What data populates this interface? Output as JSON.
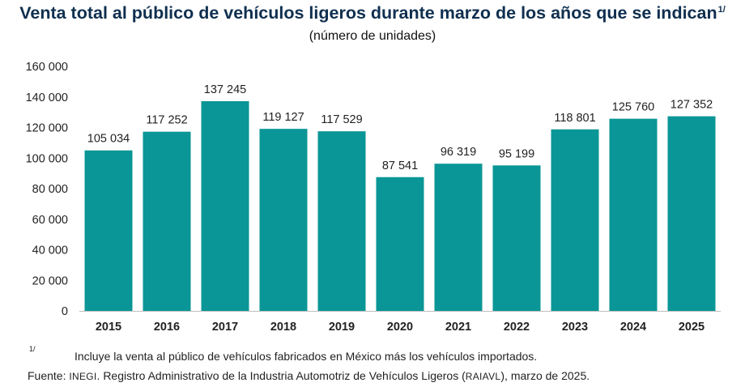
{
  "title": "Venta total al público de vehículos ligeros durante marzo de los años que se indican",
  "title_note": "1/",
  "subtitle": "(número de unidades)",
  "footnote": {
    "mark": "1/",
    "text": "Incluye la venta al público de vehículos fabricados en México más los vehículos importados."
  },
  "source": {
    "prefix": "Fuente: ",
    "org": "INEGI",
    "middle": ". Registro Administrativo de la Industria Automotriz de Vehículos Ligeros (",
    "acronym": "RAIAVL",
    "suffix": "), marzo de 2025."
  },
  "chart_data": {
    "type": "bar",
    "title": "Venta total al público de vehículos ligeros durante marzo de los años que se indican",
    "subtitle": "(número de unidades)",
    "categories": [
      "2015",
      "2016",
      "2017",
      "2018",
      "2019",
      "2020",
      "2021",
      "2022",
      "2023",
      "2024",
      "2025"
    ],
    "values": [
      105034,
      117252,
      137245,
      119127,
      117529,
      87541,
      96319,
      95199,
      118801,
      125760,
      127352
    ],
    "value_labels": [
      "105 034",
      "117 252",
      "137 245",
      "119 127",
      "117 529",
      "87 541",
      "96 319",
      "95 199",
      "118 801",
      "125 760",
      "127 352"
    ],
    "ylim": [
      0,
      160000
    ],
    "yticks": [
      0,
      20000,
      40000,
      60000,
      80000,
      100000,
      120000,
      140000,
      160000
    ],
    "ytick_labels": [
      "0",
      "20 000",
      "40 000",
      "60 000",
      "80 000",
      "100 000",
      "120 000",
      "140 000",
      "160 000"
    ],
    "grid": false,
    "bar_color": "#0a9696",
    "xlabel": "",
    "ylabel": ""
  }
}
